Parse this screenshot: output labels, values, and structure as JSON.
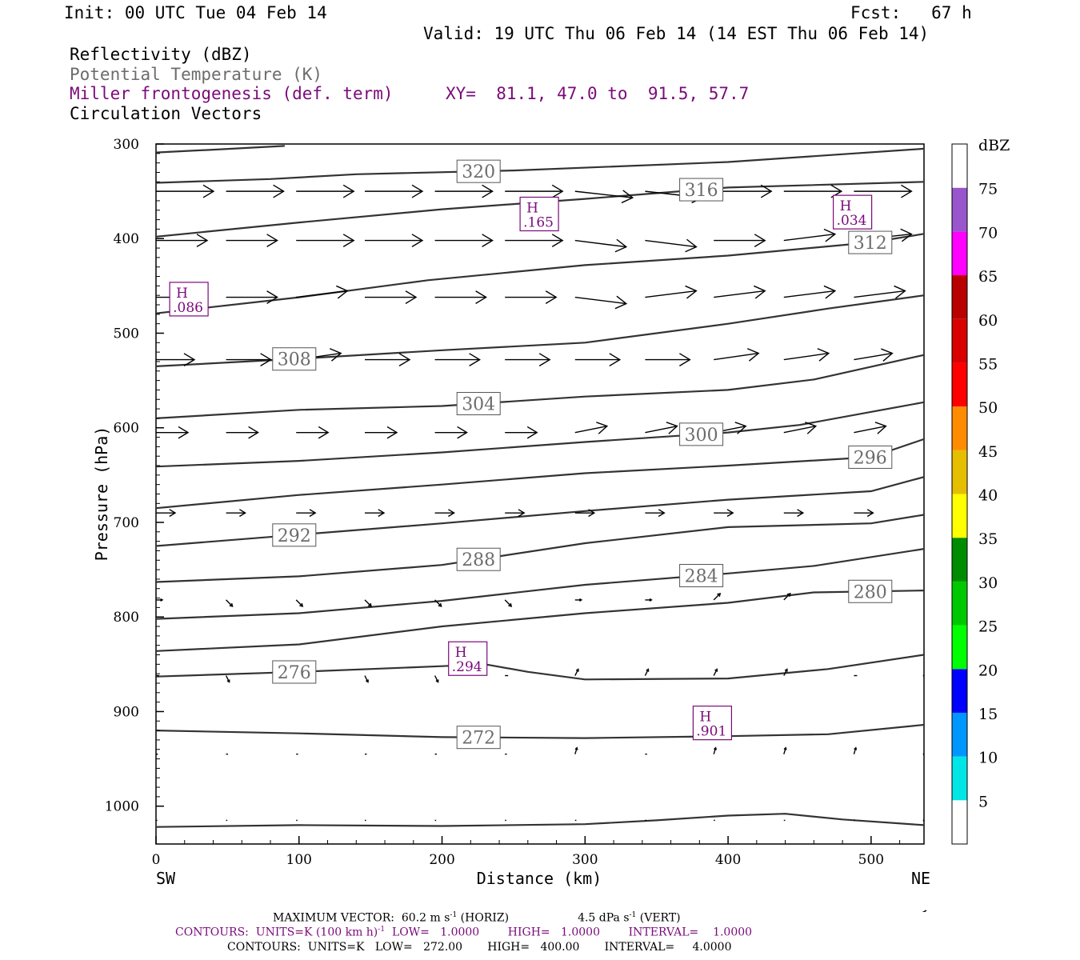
{
  "header": {
    "init": "Init: 00 UTC Tue 04 Feb 14",
    "fcst": "Fcst:   67 h",
    "valid": "Valid: 19 UTC Thu 06 Feb 14 (14 EST Thu 06 Feb 14)",
    "field1": "Reflectivity (dBZ)",
    "field2": "Potential Temperature (K)",
    "field3": "Miller frontogenesis (def. term)",
    "xy": "XY=  81.1, 47.0 to  91.5, 57.7",
    "field4": "Circulation Vectors"
  },
  "colors": {
    "frontogenesis": "#7a0a7a",
    "theta_label": "#6c6c6c",
    "contour": "#333333"
  },
  "chart_data": {
    "type": "line",
    "xlabel": "Distance (km)",
    "ylabel": "Pressure (hPa)",
    "xlim": [
      0,
      537
    ],
    "ylim": [
      1040,
      300
    ],
    "x_ticks": [
      0,
      100,
      200,
      300,
      400,
      500
    ],
    "y_ticks": [
      300,
      400,
      500,
      600,
      700,
      800,
      900,
      1000
    ],
    "x_end_labels": {
      "left": "SW",
      "right": "NE"
    },
    "theta_contours": [
      {
        "theta": "",
        "points": [
          [
            0,
            309
          ],
          [
            40,
            306
          ],
          [
            90,
            302
          ]
        ]
      },
      {
        "theta": "320",
        "points": [
          [
            0,
            341
          ],
          [
            80,
            337
          ],
          [
            140,
            332
          ],
          [
            250,
            328
          ],
          [
            400,
            319
          ],
          [
            537,
            305
          ]
        ]
      },
      {
        "theta": "316",
        "points": [
          [
            0,
            398
          ],
          [
            100,
            383
          ],
          [
            200,
            369
          ],
          [
            300,
            358
          ],
          [
            400,
            346
          ],
          [
            537,
            340
          ]
        ]
      },
      {
        "theta": "312",
        "points": [
          [
            0,
            479
          ],
          [
            100,
            462
          ],
          [
            190,
            444
          ],
          [
            300,
            428
          ],
          [
            400,
            418
          ],
          [
            500,
            404
          ],
          [
            537,
            395
          ]
        ]
      },
      {
        "theta": "308",
        "points": [
          [
            0,
            535
          ],
          [
            100,
            527
          ],
          [
            200,
            518
          ],
          [
            300,
            510
          ],
          [
            400,
            490
          ],
          [
            470,
            474
          ],
          [
            537,
            460
          ]
        ]
      },
      {
        "theta": "304",
        "points": [
          [
            0,
            590
          ],
          [
            100,
            581
          ],
          [
            200,
            577
          ],
          [
            300,
            567
          ],
          [
            400,
            560
          ],
          [
            460,
            549
          ],
          [
            537,
            523
          ]
        ]
      },
      {
        "theta": "300",
        "points": [
          [
            0,
            641
          ],
          [
            100,
            635
          ],
          [
            200,
            626
          ],
          [
            300,
            615
          ],
          [
            400,
            605
          ],
          [
            450,
            597
          ],
          [
            537,
            573
          ]
        ]
      },
      {
        "theta": "296",
        "points": [
          [
            0,
            685
          ],
          [
            100,
            671
          ],
          [
            200,
            660
          ],
          [
            300,
            648
          ],
          [
            400,
            640
          ],
          [
            500,
            631
          ],
          [
            537,
            612
          ]
        ]
      },
      {
        "theta": "292",
        "points": [
          [
            0,
            725
          ],
          [
            100,
            713
          ],
          [
            200,
            701
          ],
          [
            300,
            688
          ],
          [
            400,
            676
          ],
          [
            500,
            667
          ],
          [
            537,
            652
          ]
        ]
      },
      {
        "theta": "288",
        "points": [
          [
            0,
            763
          ],
          [
            100,
            757
          ],
          [
            200,
            745
          ],
          [
            300,
            722
          ],
          [
            400,
            705
          ],
          [
            500,
            701
          ],
          [
            537,
            692
          ]
        ]
      },
      {
        "theta": "284",
        "points": [
          [
            0,
            802
          ],
          [
            100,
            796
          ],
          [
            200,
            783
          ],
          [
            300,
            766
          ],
          [
            400,
            754
          ],
          [
            460,
            746
          ],
          [
            537,
            728
          ]
        ]
      },
      {
        "theta": "280",
        "points": [
          [
            0,
            836
          ],
          [
            100,
            829
          ],
          [
            200,
            810
          ],
          [
            300,
            796
          ],
          [
            400,
            785
          ],
          [
            460,
            774
          ],
          [
            537,
            772
          ]
        ]
      },
      {
        "theta": "276",
        "points": [
          [
            0,
            863
          ],
          [
            100,
            858
          ],
          [
            200,
            852
          ],
          [
            230,
            850
          ],
          [
            260,
            858
          ],
          [
            300,
            866
          ],
          [
            400,
            865
          ],
          [
            470,
            855
          ],
          [
            537,
            840
          ]
        ]
      },
      {
        "theta": "272",
        "points": [
          [
            0,
            920
          ],
          [
            100,
            923
          ],
          [
            200,
            927
          ],
          [
            300,
            928
          ],
          [
            400,
            926
          ],
          [
            470,
            924
          ],
          [
            537,
            914
          ]
        ]
      },
      {
        "theta": "",
        "points": [
          [
            0,
            1022
          ],
          [
            100,
            1020
          ],
          [
            200,
            1021
          ],
          [
            300,
            1019
          ],
          [
            350,
            1015
          ],
          [
            400,
            1010
          ],
          [
            440,
            1008
          ],
          [
            480,
            1014
          ],
          [
            537,
            1020
          ]
        ]
      }
    ],
    "frontogenesis_maxima": [
      {
        "label": "H",
        "value": ".165",
        "x": 268,
        "p": 374
      },
      {
        "label": "H",
        "value": ".034",
        "x": 487,
        "p": 372
      },
      {
        "label": "H",
        "value": ".086",
        "x": 23,
        "p": 464
      },
      {
        "label": "H",
        "value": ".294",
        "x": 218,
        "p": 844
      },
      {
        "label": "H",
        "value": ".901",
        "x": 389,
        "p": 912
      }
    ],
    "circulation_vectors": {
      "x_positions": [
        0,
        49,
        98,
        146,
        195,
        244,
        293,
        342,
        390,
        439,
        488,
        537
      ],
      "levels": [
        {
          "p": 350,
          "u": [
            0.9,
            0.9,
            0.9,
            0.9,
            0.9,
            0.9,
            0.9,
            0.9,
            0.9,
            0.9,
            0.9,
            0.9
          ],
          "w": [
            0,
            0,
            0,
            0,
            0,
            0,
            -0.1,
            -0.1,
            0,
            0,
            0,
            0.1
          ]
        },
        {
          "p": 402,
          "u": [
            0.8,
            0.8,
            0.9,
            0.9,
            0.9,
            0.9,
            0.8,
            0.8,
            0.8,
            0.8,
            0.9,
            0.9
          ],
          "w": [
            0,
            0,
            0,
            0,
            0,
            0,
            -0.1,
            -0.1,
            0,
            0.1,
            0.1,
            0.1
          ]
        },
        {
          "p": 462,
          "u": [
            0.7,
            0.8,
            0.8,
            0.8,
            0.8,
            0.8,
            0.8,
            0.8,
            0.8,
            0.8,
            0.8,
            0.8
          ],
          "w": [
            0,
            0,
            0.1,
            0,
            0,
            0,
            -0.1,
            0.1,
            0.1,
            0.1,
            0.1,
            0.1
          ]
        },
        {
          "p": 528,
          "u": [
            0.6,
            0.7,
            0.7,
            0.7,
            0.7,
            0.7,
            0.7,
            0.7,
            0.7,
            0.7,
            0.6,
            0.6
          ],
          "w": [
            0,
            0,
            0.1,
            0,
            0,
            0,
            0,
            0,
            0.1,
            0.1,
            0.1,
            0.1
          ]
        },
        {
          "p": 605,
          "u": [
            0.5,
            0.5,
            0.5,
            0.5,
            0.5,
            0.5,
            0.5,
            0.5,
            0.5,
            0.5,
            0.5,
            0.5
          ],
          "w": [
            0,
            0,
            0,
            0,
            0,
            0,
            0.1,
            0.1,
            0.1,
            0.1,
            0.1,
            0
          ]
        },
        {
          "p": 690,
          "u": [
            0.3,
            0.3,
            0.3,
            0.3,
            0.3,
            0.3,
            0.3,
            0.3,
            0.3,
            0.3,
            0.3,
            0.3
          ],
          "w": [
            0,
            0,
            0,
            0,
            0,
            0,
            0,
            0,
            0,
            0,
            0,
            0
          ]
        },
        {
          "p": 782,
          "u": [
            0.1,
            0.1,
            0.1,
            0.1,
            0.1,
            0.1,
            0.1,
            0.1,
            0.1,
            0.1,
            0.1,
            0.1
          ],
          "w": [
            0,
            -0.1,
            -0.1,
            -0.1,
            -0.1,
            -0.1,
            0,
            0,
            0.1,
            0.1,
            0.1,
            0
          ]
        },
        {
          "p": 862,
          "u": [
            0.05,
            0.05,
            0.05,
            0.05,
            0.05,
            0.05,
            0.05,
            0.05,
            0.05,
            0.05,
            0.05,
            0
          ],
          "w": [
            0,
            -0.1,
            -0.1,
            -0.1,
            -0.1,
            0,
            0.1,
            0.1,
            0.1,
            0.1,
            0,
            0
          ]
        },
        {
          "p": 945,
          "u": [
            0.03,
            0.03,
            0.03,
            0.03,
            0.03,
            0.03,
            0.03,
            0.03,
            0.03,
            0.03,
            0.03,
            0
          ],
          "w": [
            0,
            0,
            0,
            0,
            0,
            0,
            0.1,
            0,
            0.1,
            0.1,
            0.1,
            0
          ]
        },
        {
          "p": 1015,
          "u": [
            0.02,
            0.02,
            0.02,
            0.02,
            0.02,
            0.02,
            0.02,
            0.02,
            0.02,
            0.02,
            0.02,
            0
          ],
          "w": [
            0,
            0,
            0,
            0,
            0,
            0,
            0,
            0,
            0,
            0,
            0,
            0
          ]
        }
      ]
    },
    "colorbar": {
      "title": "dBZ",
      "levels": [
        5,
        10,
        15,
        20,
        25,
        30,
        35,
        40,
        45,
        50,
        55,
        60,
        65,
        70,
        75
      ],
      "colors": [
        "#ffffff",
        "#00e6e6",
        "#0096ff",
        "#0000ff",
        "#00ff00",
        "#00c800",
        "#008c00",
        "#ffff00",
        "#e6be00",
        "#ff8c00",
        "#ff0000",
        "#d90000",
        "#b80000",
        "#ff00ff",
        "#9955cc",
        "#ffffff"
      ]
    }
  },
  "footer": {
    "max_vector": "MAXIMUM VECTOR:  60.2 m s",
    "max_vector_sup": "-1",
    "horiz": " (HORIZ)",
    "vert_value": "4.5 dPa s",
    "vert_sup": "-1",
    "vert": " (VERT)",
    "contours1_a": "CONTOURS:  UNITS=K (100 km h)",
    "contours1_sup": "-1",
    "contours1_b": "  LOW=   1.0000        HIGH=   1.0000        INTERVAL=    1.0000",
    "contours2": "CONTOURS:  UNITS=K   LOW=   272.00       HIGH=   400.00       INTERVAL=     4.0000"
  }
}
